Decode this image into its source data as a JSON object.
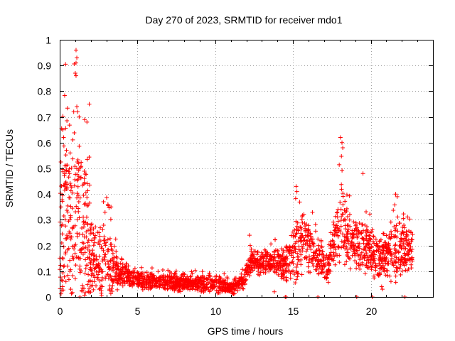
{
  "chart_data": {
    "type": "scatter",
    "title": "Day 270 of 2023, SRMTID for receiver mdo1",
    "xlabel": "GPS time / hours",
    "ylabel": "SRMTID / TECUs",
    "xlim": [
      0,
      24
    ],
    "ylim": [
      0,
      1
    ],
    "xticks": [
      0,
      5,
      10,
      15,
      20
    ],
    "yticks": [
      0,
      0.1,
      0.2,
      0.3,
      0.4,
      0.5,
      0.6,
      0.7,
      0.8,
      0.9,
      1
    ],
    "xtick_labels": [
      "0",
      "5",
      "10",
      "15",
      "20"
    ],
    "ytick_labels": [
      "0",
      "0.1",
      "0.2",
      "0.3",
      "0.4",
      "0.5",
      "0.6",
      "0.7",
      "0.8",
      "0.9",
      "1"
    ],
    "grid": true,
    "marker": "+",
    "color": "#ff0000",
    "series": [
      {
        "name": "SRMTID",
        "profile": [
          [
            0.0,
            0.18,
            0.4
          ],
          [
            0.3,
            0.35,
            0.55
          ],
          [
            0.6,
            0.25,
            0.5
          ],
          [
            0.9,
            0.35,
            0.62
          ],
          [
            1.2,
            0.3,
            0.55
          ],
          [
            1.5,
            0.28,
            0.45
          ],
          [
            1.8,
            0.25,
            0.4
          ],
          [
            2.0,
            0.15,
            0.25
          ],
          [
            2.5,
            0.14,
            0.18
          ],
          [
            3.0,
            0.15,
            0.25
          ],
          [
            3.4,
            0.12,
            0.18
          ],
          [
            3.8,
            0.09,
            0.1
          ],
          [
            4.5,
            0.08,
            0.06
          ],
          [
            5.5,
            0.06,
            0.05
          ],
          [
            7.0,
            0.055,
            0.05
          ],
          [
            8.5,
            0.05,
            0.05
          ],
          [
            10.0,
            0.05,
            0.05
          ],
          [
            11.0,
            0.035,
            0.04
          ],
          [
            11.8,
            0.06,
            0.05
          ],
          [
            12.3,
            0.14,
            0.08
          ],
          [
            13.0,
            0.13,
            0.07
          ],
          [
            13.8,
            0.14,
            0.08
          ],
          [
            14.5,
            0.12,
            0.1
          ],
          [
            15.2,
            0.18,
            0.2
          ],
          [
            15.8,
            0.22,
            0.18
          ],
          [
            16.5,
            0.15,
            0.12
          ],
          [
            17.2,
            0.12,
            0.1
          ],
          [
            17.7,
            0.22,
            0.15
          ],
          [
            18.1,
            0.3,
            0.25
          ],
          [
            18.6,
            0.22,
            0.18
          ],
          [
            19.2,
            0.2,
            0.15
          ],
          [
            20.0,
            0.17,
            0.14
          ],
          [
            20.6,
            0.14,
            0.12
          ],
          [
            21.2,
            0.18,
            0.15
          ],
          [
            21.7,
            0.2,
            0.2
          ],
          [
            22.2,
            0.18,
            0.14
          ],
          [
            22.7,
            0.17,
            0.12
          ]
        ],
        "x_range": [
          0.0,
          22.7
        ],
        "samples": 2400,
        "outliers": [
          [
            1.05,
            0.96
          ],
          [
            1.1,
            0.93
          ],
          [
            1.05,
            0.91
          ],
          [
            1.0,
            0.87
          ],
          [
            1.05,
            0.86
          ],
          [
            1.1,
            0.74
          ],
          [
            1.15,
            0.72
          ],
          [
            1.25,
            0.7
          ],
          [
            1.9,
            0.75
          ],
          [
            1.6,
            0.69
          ],
          [
            1.75,
            0.68
          ],
          [
            0.9,
            0.72
          ],
          [
            0.2,
            0.65
          ],
          [
            0.25,
            0.62
          ],
          [
            18.05,
            0.62
          ],
          [
            18.15,
            0.6
          ],
          [
            18.2,
            0.58
          ],
          [
            15.2,
            0.43
          ],
          [
            15.25,
            0.41
          ],
          [
            19.5,
            0.48
          ],
          [
            21.6,
            0.4
          ],
          [
            21.7,
            0.39
          ],
          [
            3.1,
            0.36
          ],
          [
            3.3,
            0.35
          ],
          [
            13.8,
            0.02
          ],
          [
            1.3,
            0.0
          ],
          [
            14.5,
            0.0
          ],
          [
            14.55,
            0.0
          ],
          [
            16.6,
            0.0
          ],
          [
            19.1,
            0.0
          ],
          [
            20.1,
            0.0
          ],
          [
            22.2,
            0.0
          ],
          [
            20.7,
            0.04
          ],
          [
            20.75,
            0.03
          ],
          [
            21.3,
            0.06
          ],
          [
            0.4,
            0.06
          ],
          [
            1.3,
            0.12
          ],
          [
            0.5,
            0.12
          ],
          [
            12.2,
            0.24
          ],
          [
            12.25,
            0.2
          ]
        ]
      }
    ]
  }
}
